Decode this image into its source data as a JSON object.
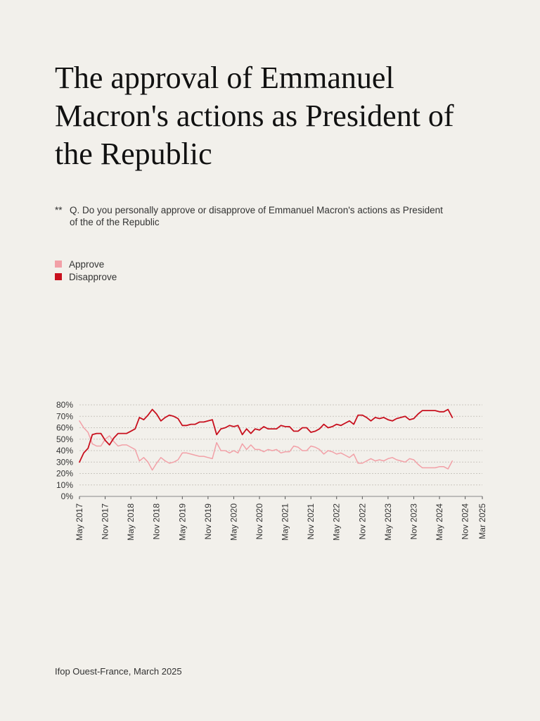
{
  "title": "The approval of Emmanuel Macron's actions as President of the Republic",
  "note": {
    "marker": "**",
    "text": "Q. Do you personally approve or disapprove of Emmanuel Macron's actions as President of the of the Republic"
  },
  "source": "Ifop Ouest-France, March 2025",
  "chart_data": {
    "type": "line",
    "title": "",
    "xlabel": "",
    "ylabel": "",
    "ylim": [
      0,
      80
    ],
    "y_ticks": [
      0,
      10,
      20,
      30,
      40,
      50,
      60,
      70,
      80
    ],
    "y_tick_labels": [
      "0%",
      "10%",
      "20%",
      "30%",
      "40%",
      "50%",
      "60%",
      "70%",
      "80%"
    ],
    "grid": true,
    "legend_position": "top-left",
    "x_range": [
      "2017-05",
      "2025-03"
    ],
    "x_tick_labels": [
      {
        "date": "2017-05",
        "label": "May 2017"
      },
      {
        "date": "2017-11",
        "label": "Nov 2017"
      },
      {
        "date": "2018-05",
        "label": "May 2018"
      },
      {
        "date": "2018-11",
        "label": "Nov 2018"
      },
      {
        "date": "2019-05",
        "label": "May 2019"
      },
      {
        "date": "2019-11",
        "label": "Nov 2019"
      },
      {
        "date": "2020-05",
        "label": "May 2020"
      },
      {
        "date": "2020-11",
        "label": "Nov 2020"
      },
      {
        "date": "2021-05",
        "label": "May 2021"
      },
      {
        "date": "2021-11",
        "label": "Nov 2021"
      },
      {
        "date": "2022-05",
        "label": "May 2022"
      },
      {
        "date": "2022-11",
        "label": "Nov 2022"
      },
      {
        "date": "2023-05",
        "label": "May 2023"
      },
      {
        "date": "2023-11",
        "label": "Nov 2023"
      },
      {
        "date": "2024-05",
        "label": "May 2024"
      },
      {
        "date": "2024-11",
        "label": "Nov 2024"
      },
      {
        "date": "2025-03",
        "label": "Mar 2025"
      }
    ],
    "series": [
      {
        "name": "Approve",
        "color": "#f2a0a7",
        "points": [
          [
            "2017-05",
            66
          ],
          [
            "2017-06",
            60
          ],
          [
            "2017-07",
            56
          ],
          [
            "2017-08",
            46
          ],
          [
            "2017-09",
            44
          ],
          [
            "2017-10",
            44
          ],
          [
            "2017-11",
            50
          ],
          [
            "2017-12",
            53
          ],
          [
            "2018-01",
            48
          ],
          [
            "2018-02",
            44
          ],
          [
            "2018-03",
            45
          ],
          [
            "2018-04",
            45
          ],
          [
            "2018-05",
            43
          ],
          [
            "2018-06",
            41
          ],
          [
            "2018-07",
            31
          ],
          [
            "2018-08",
            34
          ],
          [
            "2018-09",
            30
          ],
          [
            "2018-10",
            23
          ],
          [
            "2018-11",
            29
          ],
          [
            "2018-12",
            34
          ],
          [
            "2019-01",
            31
          ],
          [
            "2019-02",
            29
          ],
          [
            "2019-03",
            30
          ],
          [
            "2019-04",
            32
          ],
          [
            "2019-05",
            38
          ],
          [
            "2019-06",
            38
          ],
          [
            "2019-07",
            37
          ],
          [
            "2019-08",
            36
          ],
          [
            "2019-09",
            35
          ],
          [
            "2019-10",
            35
          ],
          [
            "2019-11",
            34
          ],
          [
            "2019-12",
            33
          ],
          [
            "2020-01",
            47
          ],
          [
            "2020-02",
            40
          ],
          [
            "2020-03",
            40
          ],
          [
            "2020-04",
            38
          ],
          [
            "2020-05",
            40
          ],
          [
            "2020-06",
            38
          ],
          [
            "2020-07",
            46
          ],
          [
            "2020-08",
            41
          ],
          [
            "2020-09",
            45
          ],
          [
            "2020-10",
            41
          ],
          [
            "2020-11",
            41
          ],
          [
            "2020-12",
            39
          ],
          [
            "2021-01",
            41
          ],
          [
            "2021-02",
            40
          ],
          [
            "2021-03",
            41
          ],
          [
            "2021-04",
            38
          ],
          [
            "2021-05",
            39
          ],
          [
            "2021-06",
            39
          ],
          [
            "2021-07",
            44
          ],
          [
            "2021-08",
            43
          ],
          [
            "2021-09",
            40
          ],
          [
            "2021-10",
            40
          ],
          [
            "2021-11",
            44
          ],
          [
            "2021-12",
            43
          ],
          [
            "2022-01",
            41
          ],
          [
            "2022-02",
            37
          ],
          [
            "2022-03",
            40
          ],
          [
            "2022-04",
            39
          ],
          [
            "2022-05",
            37
          ],
          [
            "2022-06",
            38
          ],
          [
            "2022-07",
            36
          ],
          [
            "2022-08",
            34
          ],
          [
            "2022-09",
            37
          ],
          [
            "2022-10",
            29
          ],
          [
            "2022-11",
            29
          ],
          [
            "2022-12",
            31
          ],
          [
            "2023-01",
            33
          ],
          [
            "2023-02",
            31
          ],
          [
            "2023-03",
            32
          ],
          [
            "2023-04",
            31
          ],
          [
            "2023-05",
            33
          ],
          [
            "2023-06",
            34
          ],
          [
            "2023-07",
            32
          ],
          [
            "2023-08",
            31
          ],
          [
            "2023-09",
            30
          ],
          [
            "2023-10",
            33
          ],
          [
            "2023-11",
            32
          ],
          [
            "2023-12",
            28
          ],
          [
            "2024-01",
            25
          ],
          [
            "2024-02",
            25
          ],
          [
            "2024-03",
            25
          ],
          [
            "2024-04",
            25
          ],
          [
            "2024-05",
            26
          ],
          [
            "2024-06",
            26
          ],
          [
            "2024-07",
            24
          ],
          [
            "2024-08",
            31
          ]
        ]
      },
      {
        "name": "Disapprove",
        "color": "#c8101e",
        "points": [
          [
            "2017-05",
            30
          ],
          [
            "2017-06",
            38
          ],
          [
            "2017-07",
            42
          ],
          [
            "2017-08",
            54
          ],
          [
            "2017-09",
            55
          ],
          [
            "2017-10",
            55
          ],
          [
            "2017-11",
            49
          ],
          [
            "2017-12",
            45
          ],
          [
            "2018-01",
            51
          ],
          [
            "2018-02",
            55
          ],
          [
            "2018-03",
            55
          ],
          [
            "2018-04",
            55
          ],
          [
            "2018-05",
            57
          ],
          [
            "2018-06",
            59
          ],
          [
            "2018-07",
            69
          ],
          [
            "2018-08",
            67
          ],
          [
            "2018-09",
            71
          ],
          [
            "2018-10",
            76
          ],
          [
            "2018-11",
            72
          ],
          [
            "2018-12",
            66
          ],
          [
            "2019-01",
            69
          ],
          [
            "2019-02",
            71
          ],
          [
            "2019-03",
            70
          ],
          [
            "2019-04",
            68
          ],
          [
            "2019-05",
            62
          ],
          [
            "2019-06",
            62
          ],
          [
            "2019-07",
            63
          ],
          [
            "2019-08",
            63
          ],
          [
            "2019-09",
            65
          ],
          [
            "2019-10",
            65
          ],
          [
            "2019-11",
            66
          ],
          [
            "2019-12",
            67
          ],
          [
            "2020-01",
            54
          ],
          [
            "2020-02",
            59
          ],
          [
            "2020-03",
            60
          ],
          [
            "2020-04",
            62
          ],
          [
            "2020-05",
            61
          ],
          [
            "2020-06",
            62
          ],
          [
            "2020-07",
            54
          ],
          [
            "2020-08",
            59
          ],
          [
            "2020-09",
            55
          ],
          [
            "2020-10",
            59
          ],
          [
            "2020-11",
            58
          ],
          [
            "2020-12",
            61
          ],
          [
            "2021-01",
            59
          ],
          [
            "2021-02",
            59
          ],
          [
            "2021-03",
            59
          ],
          [
            "2021-04",
            62
          ],
          [
            "2021-05",
            61
          ],
          [
            "2021-06",
            61
          ],
          [
            "2021-07",
            57
          ],
          [
            "2021-08",
            57
          ],
          [
            "2021-09",
            60
          ],
          [
            "2021-10",
            60
          ],
          [
            "2021-11",
            56
          ],
          [
            "2021-12",
            57
          ],
          [
            "2022-01",
            59
          ],
          [
            "2022-02",
            63
          ],
          [
            "2022-03",
            60
          ],
          [
            "2022-04",
            61
          ],
          [
            "2022-05",
            63
          ],
          [
            "2022-06",
            62
          ],
          [
            "2022-07",
            64
          ],
          [
            "2022-08",
            66
          ],
          [
            "2022-09",
            63
          ],
          [
            "2022-10",
            71
          ],
          [
            "2022-11",
            71
          ],
          [
            "2022-12",
            69
          ],
          [
            "2023-01",
            66
          ],
          [
            "2023-02",
            69
          ],
          [
            "2023-03",
            68
          ],
          [
            "2023-04",
            69
          ],
          [
            "2023-05",
            67
          ],
          [
            "2023-06",
            66
          ],
          [
            "2023-07",
            68
          ],
          [
            "2023-08",
            69
          ],
          [
            "2023-09",
            70
          ],
          [
            "2023-10",
            67
          ],
          [
            "2023-11",
            68
          ],
          [
            "2023-12",
            72
          ],
          [
            "2024-01",
            75
          ],
          [
            "2024-02",
            75
          ],
          [
            "2024-03",
            75
          ],
          [
            "2024-04",
            75
          ],
          [
            "2024-05",
            74
          ],
          [
            "2024-06",
            74
          ],
          [
            "2024-07",
            76
          ],
          [
            "2024-08",
            69
          ]
        ]
      }
    ]
  }
}
